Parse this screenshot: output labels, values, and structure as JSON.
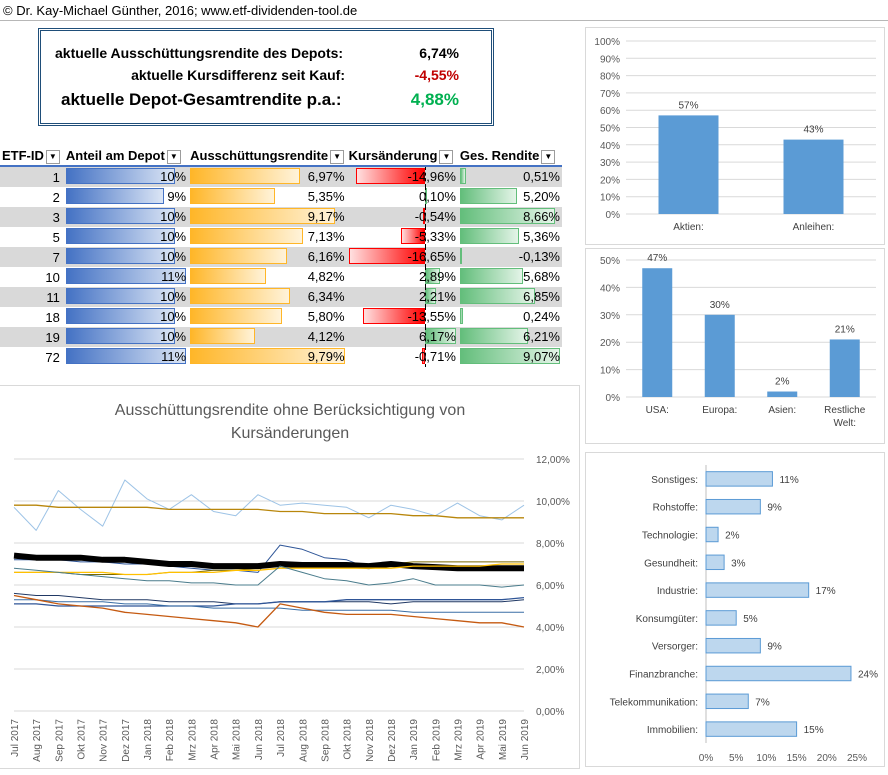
{
  "titlebar": {
    "text": "© Dr. Kay-Michael Günther, 2016; www.etf-dividenden-tool.de"
  },
  "summary": {
    "r1_label": "aktuelle Ausschüttungsrendite des Depots:",
    "r1_value": "6,74%",
    "r2_label": "aktuelle Kursdifferenz seit Kauf:",
    "r2_value": "-4,55%",
    "r3_label": "aktuelle Depot-Gesamtrendite p.a.:",
    "r3_value": "4,88%",
    "colors": {
      "negative": "#c00000",
      "positive": "#00b050"
    }
  },
  "table": {
    "headers": [
      "ETF-ID",
      "Anteil am Depot",
      "Ausschüttungsrendite",
      "Kursänderung",
      "Ges. Rendite"
    ],
    "rows": [
      {
        "id": "1",
        "anteil": "10%",
        "ausschuettung": "6,97%",
        "kurs": "-14,96%",
        "ges": "0,51%",
        "a": 10,
        "au": 6.97,
        "k": -14.96,
        "g": 0.51
      },
      {
        "id": "2",
        "anteil": "9%",
        "ausschuettung": "5,35%",
        "kurs": "0,10%",
        "ges": "5,20%",
        "a": 9,
        "au": 5.35,
        "k": 0.1,
        "g": 5.2
      },
      {
        "id": "3",
        "anteil": "10%",
        "ausschuettung": "9,17%",
        "kurs": "-0,54%",
        "ges": "8,66%",
        "a": 10,
        "au": 9.17,
        "k": -0.54,
        "g": 8.66
      },
      {
        "id": "5",
        "anteil": "10%",
        "ausschuettung": "7,13%",
        "kurs": "-5,33%",
        "ges": "5,36%",
        "a": 10,
        "au": 7.13,
        "k": -5.33,
        "g": 5.36
      },
      {
        "id": "7",
        "anteil": "10%",
        "ausschuettung": "6,16%",
        "kurs": "-16,65%",
        "ges": "-0,13%",
        "a": 10,
        "au": 6.16,
        "k": -16.65,
        "g": -0.13
      },
      {
        "id": "10",
        "anteil": "11%",
        "ausschuettung": "4,82%",
        "kurs": "2,89%",
        "ges": "5,68%",
        "a": 11,
        "au": 4.82,
        "k": 2.89,
        "g": 5.68
      },
      {
        "id": "11",
        "anteil": "10%",
        "ausschuettung": "6,34%",
        "kurs": "2,21%",
        "ges": "6,85%",
        "a": 10,
        "au": 6.34,
        "k": 2.21,
        "g": 6.85
      },
      {
        "id": "18",
        "anteil": "10%",
        "ausschuettung": "5,80%",
        "kurs": "-13,55%",
        "ges": "0,24%",
        "a": 10,
        "au": 5.8,
        "k": -13.55,
        "g": 0.24
      },
      {
        "id": "19",
        "anteil": "10%",
        "ausschuettung": "4,12%",
        "kurs": "6,17%",
        "ges": "6,21%",
        "a": 10,
        "au": 4.12,
        "k": 6.17,
        "g": 6.21
      },
      {
        "id": "72",
        "anteil": "11%",
        "ausschuettung": "9,79%",
        "kurs": "-0,71%",
        "ges": "9,07%",
        "a": 11,
        "au": 9.79,
        "k": -0.71,
        "g": 9.07
      }
    ]
  },
  "chart_data": [
    {
      "type": "bar",
      "categories": [
        "Aktien:",
        "Anleihen:"
      ],
      "values": [
        57,
        43
      ],
      "data_labels": [
        "57%",
        "43%"
      ],
      "ylim": [
        0,
        100
      ],
      "yticks": [
        "0%",
        "10%",
        "20%",
        "30%",
        "40%",
        "50%",
        "60%",
        "70%",
        "80%",
        "90%",
        "100%"
      ],
      "color": "#5b9bd5"
    },
    {
      "type": "bar",
      "categories": [
        "USA:",
        "Europa:",
        "Asien:",
        "Restliche Welt:"
      ],
      "values": [
        47,
        30,
        2,
        21
      ],
      "data_labels": [
        "47%",
        "30%",
        "2%",
        "21%"
      ],
      "ylim": [
        0,
        50
      ],
      "yticks": [
        "0%",
        "10%",
        "20%",
        "30%",
        "40%",
        "50%"
      ],
      "color": "#5b9bd5"
    },
    {
      "type": "bar",
      "orientation": "horizontal",
      "categories": [
        "Sonstiges:",
        "Rohstoffe:",
        "Technologie:",
        "Gesundheit:",
        "Industrie:",
        "Konsumgüter:",
        "Versorger:",
        "Finanzbranche:",
        "Telekommunikation:",
        "Immobilien:"
      ],
      "values": [
        11,
        9,
        2,
        3,
        17,
        5,
        9,
        24,
        7,
        15
      ],
      "data_labels": [
        "11%",
        "9%",
        "2%",
        "3%",
        "17%",
        "5%",
        "9%",
        "24%",
        "7%",
        "15%"
      ],
      "xlim": [
        0,
        25
      ],
      "xticks": [
        "0%",
        "5%",
        "10%",
        "15%",
        "20%",
        "25%"
      ],
      "color": "#bdd7ee"
    },
    {
      "type": "line",
      "title": "Ausschüttungsrendite ohne Berücksichtigung von Kursänderungen",
      "x": [
        "Jul 2017",
        "Aug 2017",
        "Sep 2017",
        "Okt 2017",
        "Nov 2017",
        "Dez 2017",
        "Jan 2018",
        "Feb 2018",
        "Mrz 2018",
        "Apr 2018",
        "Mai 2018",
        "Jun 2018",
        "Jul 2018",
        "Aug 2018",
        "Sep 2018",
        "Okt 2018",
        "Nov 2018",
        "Dez 2018",
        "Jan 2019",
        "Feb 2019",
        "Mrz 2019",
        "Apr 2019",
        "Mai 2019",
        "Jun 2019"
      ],
      "ylim": [
        0,
        12
      ],
      "yticks": [
        "0,00%",
        "2,00%",
        "4,00%",
        "6,00%",
        "8,00%",
        "10,00%",
        "12,00%"
      ],
      "series": [
        {
          "color": "#9dc3e6",
          "width": 1,
          "values": [
            9.7,
            8.6,
            10.5,
            9.6,
            8.8,
            11.0,
            10.1,
            9.6,
            10.3,
            9.5,
            9.3,
            10.3,
            9.8,
            9.9,
            9.8,
            9.7,
            9.2,
            9.8,
            9.6,
            9.3,
            9.9,
            9.3,
            9.1,
            9.8
          ]
        },
        {
          "color": "#b8860b",
          "width": 1.3,
          "values": [
            9.8,
            9.8,
            9.7,
            9.7,
            9.7,
            9.7,
            9.7,
            9.6,
            9.6,
            9.6,
            9.6,
            9.6,
            9.5,
            9.5,
            9.4,
            9.4,
            9.4,
            9.4,
            9.3,
            9.3,
            9.2,
            9.2,
            9.2,
            9.2
          ]
        },
        {
          "color": "#2e5597",
          "width": 1,
          "values": [
            7.2,
            7.2,
            7.2,
            7.1,
            7.1,
            7.0,
            7.0,
            6.9,
            6.8,
            6.7,
            6.7,
            6.6,
            7.9,
            7.7,
            7.3,
            7.2,
            6.8,
            6.9,
            6.8,
            6.8,
            6.9,
            6.8,
            6.8,
            6.9
          ]
        },
        {
          "color": "#7a6a00",
          "width": 1,
          "values": [
            6.6,
            6.6,
            6.6,
            6.5,
            6.5,
            6.5,
            6.5,
            6.6,
            6.6,
            6.7,
            6.7,
            6.8,
            6.9,
            7.0,
            7.0,
            7.0,
            7.0,
            7.0,
            7.1,
            7.1,
            7.1,
            7.1,
            7.1,
            7.1
          ]
        },
        {
          "color": "#000000",
          "width": 6,
          "values": [
            7.4,
            7.3,
            7.3,
            7.3,
            7.2,
            7.2,
            7.1,
            7.0,
            7.0,
            6.9,
            6.9,
            6.9,
            7.0,
            6.95,
            6.95,
            6.95,
            6.9,
            7.0,
            6.9,
            6.85,
            6.8,
            6.8,
            6.8,
            6.8
          ]
        },
        {
          "color": "#ffc000",
          "width": 1.3,
          "values": [
            6.6,
            6.6,
            6.6,
            6.6,
            6.6,
            6.5,
            6.5,
            6.6,
            6.6,
            6.6,
            6.7,
            6.7,
            6.8,
            6.8,
            6.8,
            6.8,
            6.8,
            6.8,
            6.9,
            6.9,
            6.9,
            6.9,
            7.0,
            7.0
          ]
        },
        {
          "color": "#4a7c8c",
          "width": 1,
          "values": [
            6.8,
            6.7,
            6.6,
            6.5,
            6.4,
            6.3,
            6.2,
            6.2,
            6.1,
            6.1,
            6.0,
            6.0,
            6.9,
            6.6,
            6.3,
            6.2,
            6.0,
            6.1,
            6.3,
            6.0,
            6.0,
            6.0,
            5.9,
            6.0
          ]
        },
        {
          "color": "#203864",
          "width": 1,
          "values": [
            5.6,
            5.5,
            5.5,
            5.4,
            5.3,
            5.3,
            5.3,
            5.2,
            5.2,
            5.2,
            5.1,
            5.1,
            5.2,
            5.2,
            5.2,
            5.2,
            5.2,
            5.1,
            5.2,
            5.2,
            5.2,
            5.2,
            5.2,
            5.3
          ]
        },
        {
          "color": "#2f5597",
          "width": 1.3,
          "values": [
            5.1,
            5.1,
            5.0,
            5.0,
            5.0,
            5.0,
            5.0,
            5.0,
            5.0,
            5.0,
            5.1,
            5.1,
            5.2,
            5.2,
            5.2,
            5.3,
            5.3,
            5.3,
            5.3,
            5.3,
            5.3,
            5.3,
            5.3,
            5.4
          ]
        },
        {
          "color": "#3a6ea5",
          "width": 1,
          "values": [
            5.3,
            5.3,
            5.2,
            5.2,
            5.2,
            5.1,
            5.1,
            5.0,
            5.0,
            4.9,
            4.9,
            4.9,
            4.9,
            4.8,
            4.8,
            4.8,
            4.8,
            4.8,
            4.7,
            4.7,
            4.7,
            4.7,
            4.7,
            4.7
          ]
        },
        {
          "color": "#c55a11",
          "width": 1.3,
          "values": [
            5.5,
            5.3,
            5.1,
            5.0,
            4.9,
            4.7,
            4.6,
            4.5,
            4.4,
            4.3,
            4.2,
            4.0,
            5.1,
            4.9,
            4.7,
            4.6,
            4.6,
            4.6,
            4.5,
            4.4,
            4.3,
            4.2,
            4.2,
            4.0
          ]
        }
      ]
    }
  ]
}
